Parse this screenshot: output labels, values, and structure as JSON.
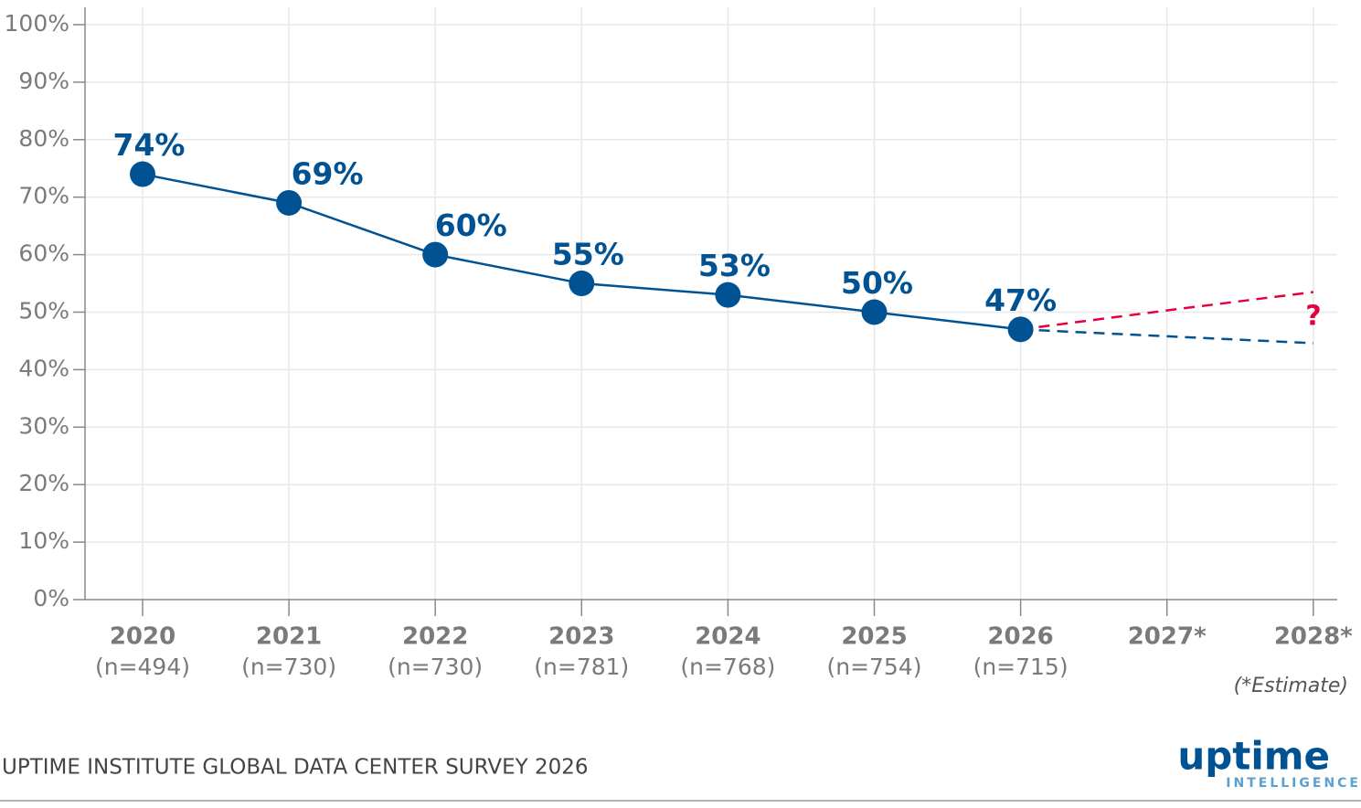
{
  "chart_data": {
    "type": "line",
    "categories": [
      "2020",
      "2021",
      "2022",
      "2023",
      "2024",
      "2025",
      "2026",
      "2027*",
      "2028*"
    ],
    "sample_sizes": [
      "(n=494)",
      "(n=730)",
      "(n=730)",
      "(n=781)",
      "(n=768)",
      "(n=754)",
      "(n=715)",
      null,
      null
    ],
    "series": [
      {
        "color": "#005293",
        "values": [
          74,
          69,
          60,
          55,
          53,
          50,
          47,
          null,
          null
        ],
        "value_labels": [
          "74%",
          "69%",
          "60%",
          "55%",
          "53%",
          "50%",
          "47%",
          null,
          null
        ]
      },
      {
        "color": "#e4003b",
        "dashed": true,
        "values": [
          null,
          null,
          null,
          null,
          null,
          null,
          47,
          50.3,
          53.5
        ]
      },
      {
        "color": "#005293",
        "dashed": true,
        "values": [
          null,
          null,
          null,
          null,
          null,
          null,
          47,
          45.8,
          44.6
        ]
      }
    ],
    "ylim": [
      0,
      100
    ],
    "yticks": [
      {
        "value": 0,
        "label": "0%"
      },
      {
        "value": 10,
        "label": "10%"
      },
      {
        "value": 20,
        "label": "20%"
      },
      {
        "value": 30,
        "label": "30%"
      },
      {
        "value": 40,
        "label": "40%"
      },
      {
        "value": 50,
        "label": "50%"
      },
      {
        "value": 60,
        "label": "60%"
      },
      {
        "value": 70,
        "label": "70%"
      },
      {
        "value": 80,
        "label": "80%"
      },
      {
        "value": 90,
        "label": "90%"
      },
      {
        "value": 100,
        "label": "100%"
      }
    ],
    "grid": true,
    "annotations": {
      "question": "?",
      "estimate_note": "(*Estimate)"
    },
    "footer": "UPTIME INSTITUTE GLOBAL DATA CENTER SURVEY 2026",
    "logo": {
      "name": "uptime",
      "tagline": "INTELLIGENCE"
    }
  }
}
